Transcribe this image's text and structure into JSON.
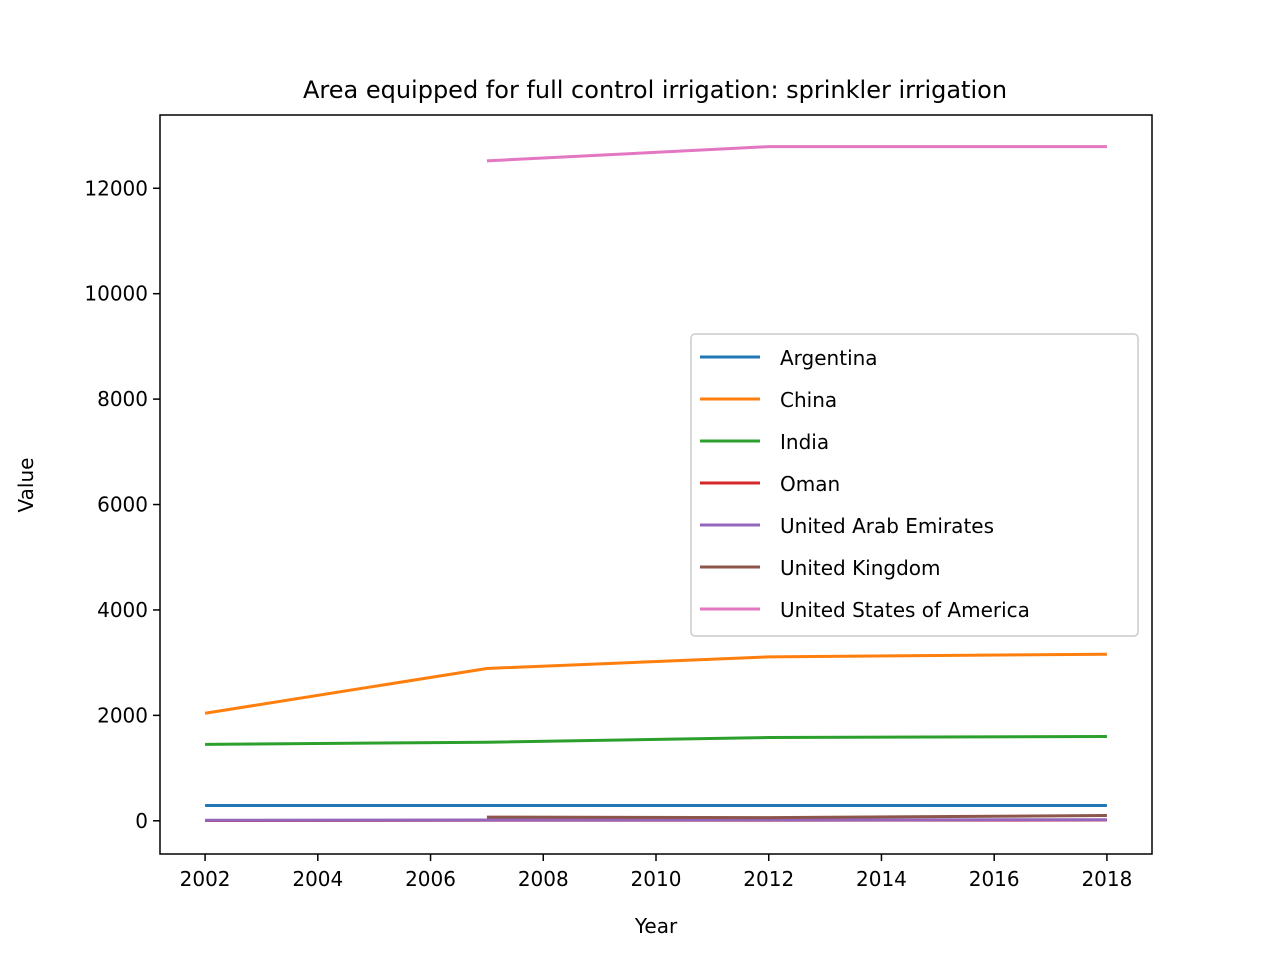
{
  "chart_data": {
    "type": "line",
    "title": "Area equipped for full control irrigation: sprinkler irrigation",
    "xlabel": "Year",
    "ylabel": "Value",
    "xlim": [
      2001.2,
      2018.8
    ],
    "ylim": [
      -630,
      13390
    ],
    "xticks": [
      2002,
      2004,
      2006,
      2008,
      2010,
      2012,
      2014,
      2016,
      2018
    ],
    "yticks": [
      0,
      2000,
      4000,
      6000,
      8000,
      10000,
      12000
    ],
    "grid": false,
    "legend_position": "center-right",
    "series": [
      {
        "name": "Argentina",
        "color": "#1f77b4",
        "x": [
          2002,
          2007,
          2012,
          2018
        ],
        "y": [
          290,
          290,
          290,
          290
        ]
      },
      {
        "name": "China",
        "color": "#ff7f0e",
        "x": [
          2002,
          2007,
          2012,
          2018
        ],
        "y": [
          2040,
          2890,
          3110,
          3160
        ]
      },
      {
        "name": "India",
        "color": "#2ca02c",
        "x": [
          2002,
          2007,
          2012,
          2018
        ],
        "y": [
          1450,
          1490,
          1580,
          1600
        ]
      },
      {
        "name": "Oman",
        "color": "#d62728",
        "x": [
          2002,
          2007,
          2012,
          2018
        ],
        "y": [
          5,
          10,
          10,
          15
        ]
      },
      {
        "name": "United Arab Emirates",
        "color": "#9467bd",
        "x": [
          2002,
          2007,
          2012,
          2018
        ],
        "y": [
          10,
          15,
          15,
          20
        ]
      },
      {
        "name": "United Kingdom",
        "color": "#8c564b",
        "x": [
          2007,
          2012,
          2018
        ],
        "y": [
          70,
          60,
          100
        ]
      },
      {
        "name": "United States of America",
        "color": "#e377c2",
        "x": [
          2007,
          2012,
          2018
        ],
        "y": [
          12520,
          12790,
          12790
        ]
      }
    ]
  }
}
